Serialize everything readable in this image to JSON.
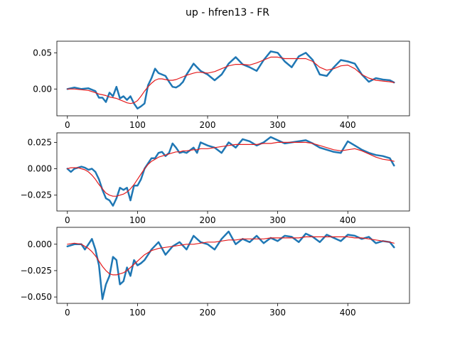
{
  "title": "up - hfren13 - FR",
  "colors": {
    "raw": "#1f77b4",
    "smooth": "#e41a1c",
    "axes": "#000000"
  },
  "chart_data": [
    {
      "type": "line",
      "xlim": [
        -15,
        488
      ],
      "ylim": [
        -0.037,
        0.066
      ],
      "xticks": [
        0,
        100,
        200,
        300,
        400
      ],
      "yticks": [
        0.0,
        0.05
      ],
      "ytick_labels": [
        "0.00",
        "0.05"
      ],
      "x": [
        0,
        10,
        20,
        30,
        40,
        45,
        50,
        55,
        60,
        65,
        70,
        75,
        80,
        85,
        90,
        95,
        100,
        105,
        110,
        115,
        120,
        125,
        130,
        135,
        140,
        145,
        150,
        155,
        160,
        165,
        170,
        180,
        185,
        190,
        200,
        210,
        220,
        230,
        240,
        250,
        260,
        270,
        280,
        290,
        300,
        310,
        320,
        330,
        340,
        350,
        360,
        370,
        380,
        390,
        400,
        410,
        420,
        430,
        440,
        450,
        460,
        466
      ],
      "series": [
        {
          "name": "",
          "values": [
            0.0,
            0.002,
            0.0,
            0.001,
            -0.003,
            -0.012,
            -0.012,
            -0.018,
            -0.005,
            -0.01,
            0.003,
            -0.013,
            -0.01,
            -0.015,
            -0.01,
            -0.02,
            -0.027,
            -0.024,
            -0.02,
            0.005,
            0.015,
            0.028,
            0.022,
            0.02,
            0.018,
            0.01,
            0.003,
            0.002,
            0.005,
            0.01,
            0.02,
            0.035,
            0.03,
            0.025,
            0.02,
            0.012,
            0.02,
            0.035,
            0.044,
            0.034,
            0.03,
            0.025,
            0.04,
            0.052,
            0.05,
            0.038,
            0.03,
            0.045,
            0.05,
            0.04,
            0.02,
            0.018,
            0.03,
            0.04,
            0.038,
            0.035,
            0.02,
            0.01,
            0.015,
            0.013,
            0.012,
            0.009
          ]
        },
        {
          "name": "",
          "values": [
            0.0,
            0.0,
            -0.001,
            -0.002,
            -0.005,
            -0.007,
            -0.008,
            -0.009,
            -0.011,
            -0.012,
            -0.013,
            -0.015,
            -0.017,
            -0.019,
            -0.02,
            -0.019,
            -0.016,
            -0.01,
            -0.003,
            0.003,
            0.008,
            0.012,
            0.014,
            0.014,
            0.013,
            0.012,
            0.012,
            0.013,
            0.015,
            0.017,
            0.019,
            0.022,
            0.023,
            0.023,
            0.022,
            0.024,
            0.028,
            0.032,
            0.034,
            0.034,
            0.033,
            0.036,
            0.04,
            0.044,
            0.044,
            0.042,
            0.042,
            0.042,
            0.042,
            0.038,
            0.03,
            0.026,
            0.028,
            0.032,
            0.033,
            0.028,
            0.02,
            0.015,
            0.012,
            0.011,
            0.01,
            0.009
          ]
        }
      ]
    },
    {
      "type": "line",
      "xlim": [
        -15,
        488
      ],
      "ylim": [
        -0.04,
        0.034
      ],
      "xticks": [
        0,
        100,
        200,
        300,
        400
      ],
      "yticks": [
        -0.025,
        0.0,
        0.025
      ],
      "ytick_labels": [
        "−0.025",
        "0.000",
        "0.025"
      ],
      "x": [
        0,
        5,
        10,
        15,
        20,
        25,
        30,
        35,
        40,
        45,
        50,
        55,
        60,
        65,
        70,
        75,
        80,
        85,
        90,
        95,
        100,
        105,
        110,
        115,
        120,
        125,
        130,
        135,
        140,
        145,
        150,
        155,
        160,
        165,
        170,
        180,
        185,
        190,
        200,
        210,
        220,
        230,
        240,
        250,
        260,
        270,
        280,
        290,
        300,
        310,
        320,
        330,
        340,
        350,
        360,
        370,
        380,
        390,
        400,
        410,
        420,
        430,
        440,
        450,
        460,
        466
      ],
      "series": [
        {
          "name": "",
          "values": [
            0.0,
            -0.003,
            0.0,
            0.001,
            0.002,
            0.001,
            -0.001,
            0.0,
            -0.003,
            -0.01,
            -0.02,
            -0.028,
            -0.03,
            -0.035,
            -0.028,
            -0.018,
            -0.02,
            -0.018,
            -0.03,
            -0.016,
            -0.016,
            -0.01,
            0.0,
            0.005,
            0.01,
            0.01,
            0.015,
            0.016,
            0.012,
            0.015,
            0.024,
            0.02,
            0.015,
            0.016,
            0.015,
            0.02,
            0.015,
            0.025,
            0.022,
            0.02,
            0.015,
            0.025,
            0.02,
            0.028,
            0.026,
            0.022,
            0.025,
            0.03,
            0.027,
            0.024,
            0.025,
            0.026,
            0.027,
            0.024,
            0.02,
            0.018,
            0.016,
            0.015,
            0.026,
            0.022,
            0.018,
            0.015,
            0.013,
            0.012,
            0.01,
            0.003
          ]
        },
        {
          "name": "",
          "values": [
            0.0,
            0.001,
            0.001,
            0.001,
            0.0,
            -0.001,
            -0.003,
            -0.006,
            -0.01,
            -0.015,
            -0.019,
            -0.023,
            -0.025,
            -0.026,
            -0.026,
            -0.025,
            -0.024,
            -0.022,
            -0.019,
            -0.015,
            -0.01,
            -0.005,
            0.0,
            0.004,
            0.007,
            0.009,
            0.011,
            0.012,
            0.013,
            0.014,
            0.015,
            0.016,
            0.016,
            0.017,
            0.017,
            0.018,
            0.018,
            0.019,
            0.019,
            0.02,
            0.021,
            0.022,
            0.023,
            0.023,
            0.023,
            0.023,
            0.024,
            0.024,
            0.025,
            0.025,
            0.025,
            0.025,
            0.025,
            0.024,
            0.022,
            0.02,
            0.018,
            0.017,
            0.018,
            0.019,
            0.017,
            0.014,
            0.011,
            0.009,
            0.008,
            0.007
          ]
        }
      ]
    },
    {
      "type": "line",
      "xlim": [
        -15,
        488
      ],
      "ylim": [
        -0.056,
        0.016
      ],
      "xticks": [
        0,
        100,
        200,
        300,
        400
      ],
      "yticks": [
        -0.05,
        -0.025,
        0.0
      ],
      "ytick_labels": [
        "−0.050",
        "−0.025",
        "0.000"
      ],
      "x": [
        0,
        10,
        20,
        25,
        30,
        35,
        40,
        45,
        50,
        55,
        60,
        65,
        70,
        75,
        80,
        85,
        90,
        95,
        100,
        105,
        110,
        120,
        130,
        140,
        150,
        160,
        170,
        180,
        190,
        200,
        210,
        220,
        230,
        240,
        250,
        260,
        270,
        280,
        290,
        300,
        310,
        320,
        330,
        340,
        350,
        360,
        370,
        380,
        390,
        400,
        410,
        420,
        430,
        440,
        450,
        460,
        466
      ],
      "series": [
        {
          "name": "",
          "values": [
            -0.002,
            0.0,
            0.0,
            -0.005,
            0.0,
            0.005,
            -0.005,
            -0.02,
            -0.052,
            -0.038,
            -0.03,
            -0.012,
            -0.015,
            -0.038,
            -0.035,
            -0.022,
            -0.03,
            -0.015,
            -0.02,
            -0.018,
            -0.015,
            -0.005,
            0.002,
            -0.01,
            -0.002,
            0.002,
            -0.005,
            0.008,
            0.002,
            0.0,
            -0.005,
            0.005,
            0.012,
            0.0,
            0.005,
            0.002,
            0.008,
            0.001,
            0.006,
            0.003,
            0.008,
            0.007,
            0.002,
            0.01,
            0.007,
            0.002,
            0.009,
            0.006,
            0.003,
            0.009,
            0.008,
            0.005,
            0.007,
            0.001,
            0.003,
            0.002,
            -0.003
          ]
        },
        {
          "name": "",
          "values": [
            0.0,
            0.001,
            0.0,
            -0.002,
            -0.004,
            -0.007,
            -0.011,
            -0.016,
            -0.021,
            -0.025,
            -0.028,
            -0.029,
            -0.029,
            -0.028,
            -0.027,
            -0.025,
            -0.022,
            -0.019,
            -0.016,
            -0.013,
            -0.01,
            -0.006,
            -0.004,
            -0.003,
            -0.002,
            -0.001,
            0.0,
            0.0,
            0.001,
            0.002,
            0.002,
            0.003,
            0.004,
            0.004,
            0.005,
            0.005,
            0.005,
            0.005,
            0.006,
            0.006,
            0.006,
            0.006,
            0.006,
            0.007,
            0.007,
            0.007,
            0.007,
            0.007,
            0.007,
            0.007,
            0.006,
            0.006,
            0.005,
            0.004,
            0.003,
            0.002,
            0.001
          ]
        }
      ]
    }
  ]
}
